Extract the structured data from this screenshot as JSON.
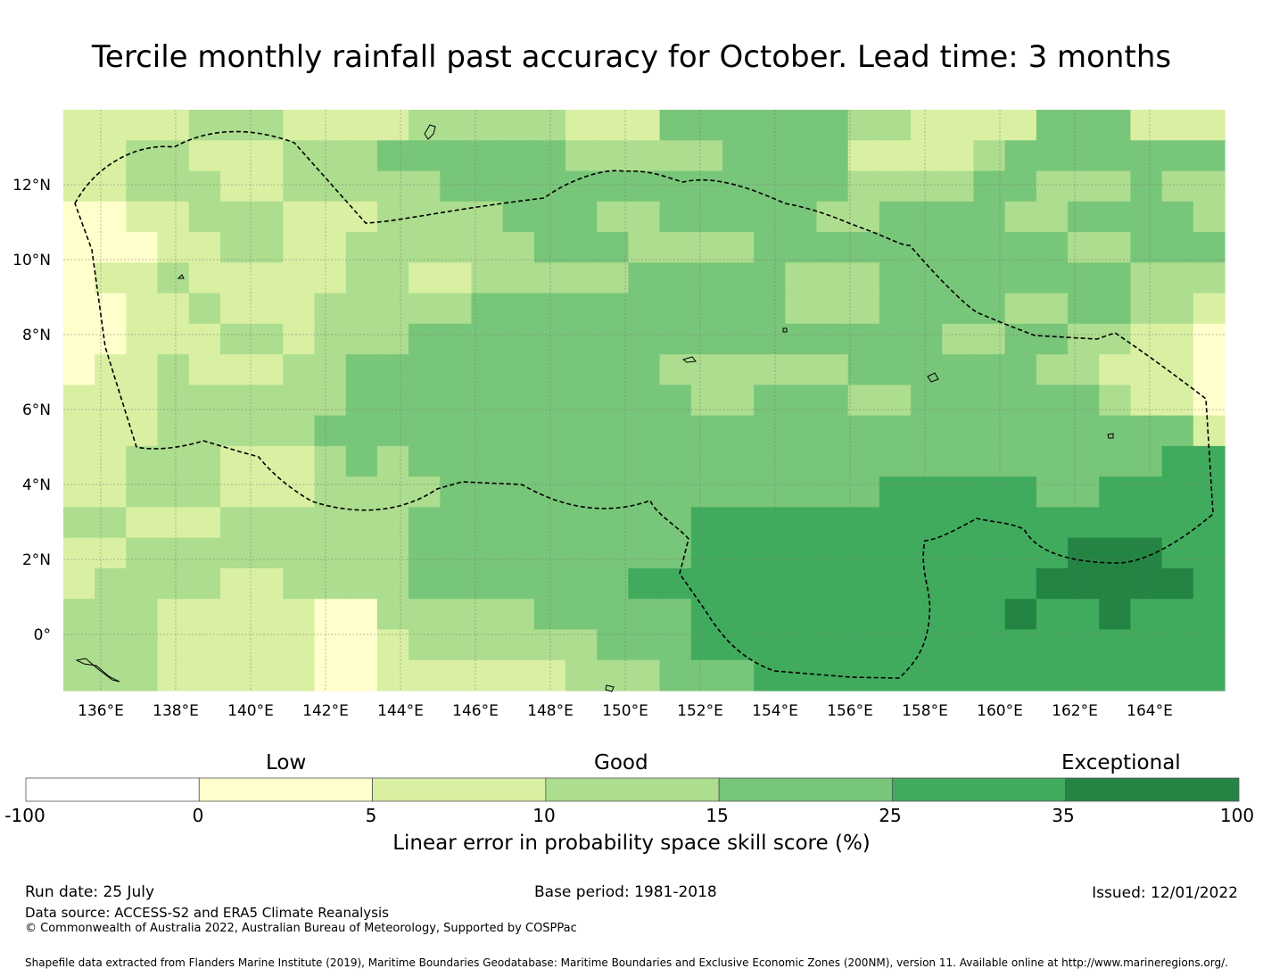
{
  "title": "Tercile monthly rainfall past accuracy for October. Lead time: 3 months",
  "map": {
    "lon_range": [
      135,
      166
    ],
    "lat_range": [
      -1.5,
      14
    ],
    "lon_ticks": [
      "136°E",
      "138°E",
      "140°E",
      "142°E",
      "144°E",
      "146°E",
      "148°E",
      "150°E",
      "152°E",
      "154°E",
      "156°E",
      "158°E",
      "160°E",
      "162°E",
      "164°E"
    ],
    "lat_ticks": [
      "12°N",
      "10°N",
      "8°N",
      "6°N",
      "4°N",
      "2°N",
      "0°"
    ],
    "boundary": "dashed"
  },
  "colorbar": {
    "categories": [
      "Low",
      "Good",
      "Exceptional"
    ],
    "ticks": [
      "-100",
      "0",
      "5",
      "10",
      "15",
      "25",
      "35",
      "100"
    ],
    "colors": [
      "#ffffff",
      "#ffffcc",
      "#d9f0a3",
      "#addd8e",
      "#78c679",
      "#41ab5d",
      "#238443"
    ],
    "label": "Linear error in probability space skill score (%)"
  },
  "footer": {
    "run_date": "Run date: 25 July",
    "base_period": "Base period: 1981-2018",
    "issued": "Issued: 12/01/2022",
    "data_source": "Data source: ACCESS-S2 and ERA5 Climate Reanalysis",
    "copyright": "© Commonwealth of Australia 2022, Australian Bureau of Meteorology, Supported by COSPPac",
    "shapefile": "Shapefile data extracted from Flanders Marine Institute (2019), Maritime Boundaries Geodatabase: Maritime Boundaries and Exclusive Economic Zones (200NM), version 11. Available online at http://www.marineregions.org/."
  }
}
